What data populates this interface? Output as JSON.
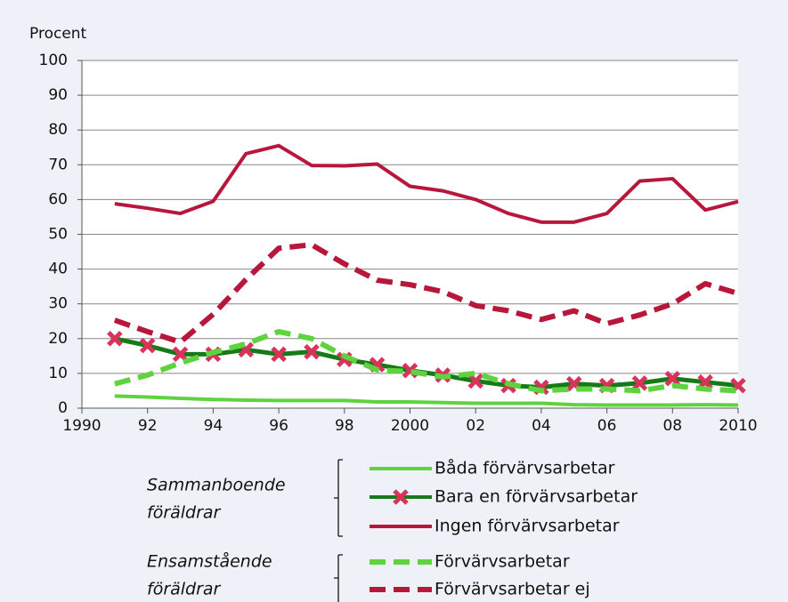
{
  "chart_data": {
    "type": "line",
    "ylabel": "Procent",
    "x": [
      1991,
      1992,
      1993,
      1994,
      1995,
      1996,
      1997,
      1998,
      1999,
      2000,
      2001,
      2002,
      2003,
      2004,
      2005,
      2006,
      2007,
      2008,
      2009,
      2010
    ],
    "xlim": [
      1990,
      2010
    ],
    "xticks": [
      {
        "value": 1990,
        "label": "1990"
      },
      {
        "value": 1992,
        "label": "92"
      },
      {
        "value": 1994,
        "label": "94"
      },
      {
        "value": 1996,
        "label": "96"
      },
      {
        "value": 1998,
        "label": "98"
      },
      {
        "value": 2000,
        "label": "2000"
      },
      {
        "value": 2002,
        "label": "02"
      },
      {
        "value": 2004,
        "label": "04"
      },
      {
        "value": 2006,
        "label": "06"
      },
      {
        "value": 2008,
        "label": "08"
      },
      {
        "value": 2010,
        "label": "2010"
      }
    ],
    "ylim": [
      0,
      100
    ],
    "yticks": [
      0,
      10,
      20,
      30,
      40,
      50,
      60,
      70,
      80,
      90,
      100
    ],
    "grid": true,
    "legend_groups": [
      {
        "lines": [
          "Sammanboende",
          "föräldrar"
        ]
      },
      {
        "lines": [
          "Ensamstående",
          "föräldrar"
        ]
      }
    ],
    "series": [
      {
        "name": "Båda förvärvsarbetar",
        "color": "#5fd23f",
        "dash": false,
        "values": [
          3.5,
          3.2,
          2.8,
          2.5,
          2.3,
          2.2,
          2.2,
          2.2,
          1.8,
          1.8,
          1.6,
          1.4,
          1.4,
          1.4,
          1.0,
          0.9,
          0.9,
          0.9,
          1.0,
          0.9
        ]
      },
      {
        "name": "Bara en förvärvsarbetar",
        "color": "#157a17",
        "dash": false,
        "marker": "x",
        "marker_color": "#d8335a",
        "values": [
          20,
          18,
          15.5,
          15.5,
          16.8,
          15.5,
          16.2,
          14,
          12.5,
          10.8,
          9.5,
          7.8,
          6.5,
          6,
          7,
          6.5,
          7.2,
          8.5,
          7.5,
          6.5
        ]
      },
      {
        "name": "Ingen förvärvsarbetar",
        "color": "#b8173c",
        "dash": false,
        "values": [
          58.8,
          57.5,
          56,
          59.5,
          73.2,
          75.5,
          69.8,
          69.7,
          70.2,
          63.8,
          62.5,
          60,
          56,
          53.5,
          53.5,
          56,
          65.3,
          66,
          57,
          59.4
        ]
      },
      {
        "name": "Förvärvsarbetar",
        "color": "#5fd23f",
        "dash": true,
        "values": [
          7,
          9.5,
          13,
          16,
          18.5,
          22,
          20,
          15,
          11,
          10.5,
          9,
          10,
          7,
          5,
          5.5,
          5.5,
          5,
          6.5,
          5.5,
          5
        ]
      },
      {
        "name": "Förvärvsarbetar ej",
        "color": "#b8173c",
        "dash": true,
        "values": [
          25.3,
          22,
          19,
          27,
          37,
          46,
          47,
          41.5,
          36.8,
          35.5,
          33.5,
          29.5,
          28,
          25.5,
          28,
          24.3,
          26.8,
          30,
          35.8,
          33
        ]
      }
    ]
  }
}
